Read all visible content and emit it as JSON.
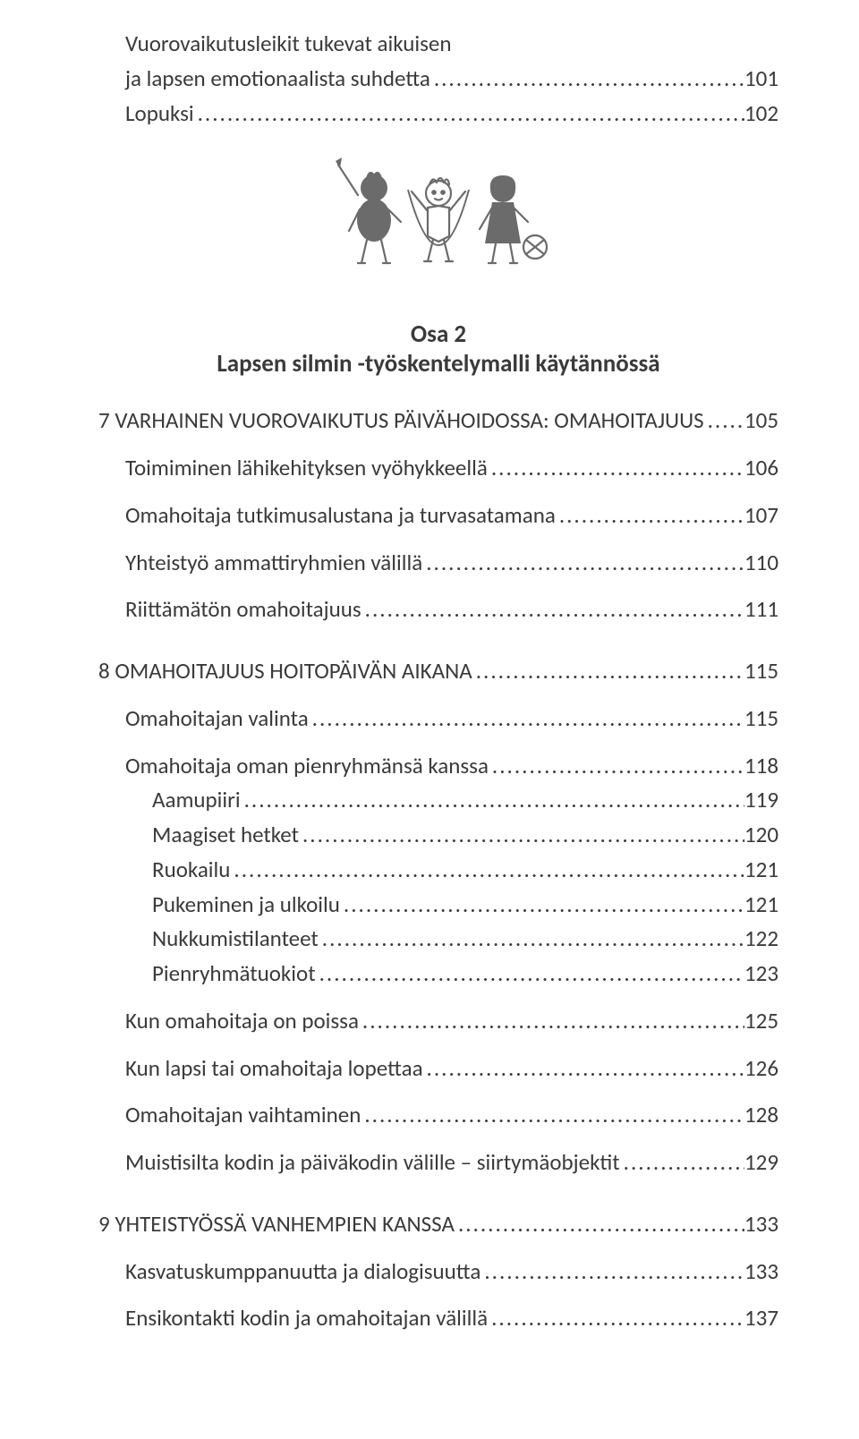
{
  "colors": {
    "text": "#3a3a3a",
    "background": "#ffffff",
    "illus_fill": "#6b6b6b",
    "illus_stroke": "#6b6b6b"
  },
  "typography": {
    "body_fontsize_pt": 19,
    "part_fontsize_pt": 20,
    "font_family": "Calibri"
  },
  "part": {
    "number": "Osa 2",
    "title": "Lapsen silmin -työskentelymalli käytännössä"
  },
  "toc": [
    {
      "level": 1,
      "label": "Vuorovaikutusleikit tukevat aikuisen",
      "page": "",
      "nodots": true
    },
    {
      "level": 1,
      "label": "ja lapsen emotionaalista suhdetta",
      "page": "101"
    },
    {
      "level": 1,
      "label": "Lopuksi",
      "page": "102"
    },
    {
      "type": "illustration"
    },
    {
      "type": "part"
    },
    {
      "level": 0,
      "label": "7 VARHAINEN VUOROVAIKUTUS PÄIVÄHOIDOSSA: OMAHOITAJUUS",
      "page": "105"
    },
    {
      "type": "gap-s"
    },
    {
      "level": 1,
      "label": "Toimiminen lähikehityksen vyöhykkeellä",
      "page": "106"
    },
    {
      "type": "gap-s"
    },
    {
      "level": 1,
      "label": "Omahoitaja tutkimusalustana ja turvasatamana",
      "page": "107"
    },
    {
      "type": "gap-s"
    },
    {
      "level": 1,
      "label": "Yhteistyö ammattiryhmien välillä",
      "page": "110"
    },
    {
      "type": "gap-s"
    },
    {
      "level": 1,
      "label": "Riittämätön omahoitajuus",
      "page": "111"
    },
    {
      "type": "gap-m"
    },
    {
      "level": 0,
      "label": "8 OMAHOITAJUUS HOITOPÄIVÄN AIKANA",
      "page": "115"
    },
    {
      "type": "gap-s"
    },
    {
      "level": 1,
      "label": "Omahoitajan valinta",
      "page": "115"
    },
    {
      "type": "gap-s"
    },
    {
      "level": 1,
      "label": "Omahoitaja oman pienryhmänsä kanssa",
      "page": "118"
    },
    {
      "level": 2,
      "label": "Aamupiiri",
      "page": "119"
    },
    {
      "level": 2,
      "label": "Maagiset hetket",
      "page": "120"
    },
    {
      "level": 2,
      "label": "Ruokailu",
      "page": "121"
    },
    {
      "level": 2,
      "label": "Pukeminen ja ulkoilu",
      "page": "121"
    },
    {
      "level": 2,
      "label": "Nukkumistilanteet",
      "page": "122"
    },
    {
      "level": 2,
      "label": "Pienryhmätuokiot",
      "page": "123"
    },
    {
      "type": "gap-s"
    },
    {
      "level": 1,
      "label": "Kun omahoitaja on poissa",
      "page": "125"
    },
    {
      "type": "gap-s"
    },
    {
      "level": 1,
      "label": "Kun lapsi tai omahoitaja lopettaa",
      "page": "126"
    },
    {
      "type": "gap-s"
    },
    {
      "level": 1,
      "label": "Omahoitajan vaihtaminen",
      "page": "128"
    },
    {
      "type": "gap-s"
    },
    {
      "level": 1,
      "label": "Muistisilta kodin ja päiväkodin välille – siirtymäobjektit",
      "page": "129"
    },
    {
      "type": "gap-m"
    },
    {
      "level": 0,
      "label": "9 YHTEISTYÖSSÄ VANHEMPIEN KANSSA",
      "page": "133"
    },
    {
      "type": "gap-s"
    },
    {
      "level": 1,
      "label": "Kasvatuskumppanuutta ja dialogisuutta",
      "page": "133"
    },
    {
      "type": "gap-s"
    },
    {
      "level": 1,
      "label": "Ensikontakti kodin ja omahoitajan välillä",
      "page": "137"
    }
  ]
}
